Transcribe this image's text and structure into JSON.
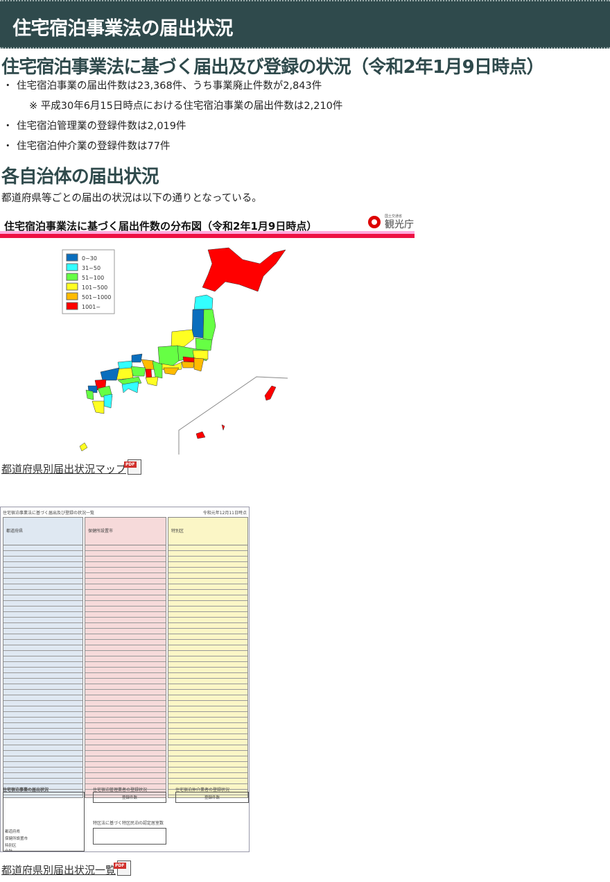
{
  "page_title": "住宅宿泊事業法の届出状況",
  "section1": {
    "heading": "住宅宿泊事業法に基づく届出及び登録の状況（令和2年1月9日時点）",
    "bullets": [
      "住宅宿泊事業の届出件数は23,368件、うち事業廃止件数が2,843件",
      "住宅宿泊管理業の登録件数は2,019件",
      "住宅宿泊仲介業の登録件数は77件"
    ],
    "bullet_mark": "・",
    "note": "※ 平成30年6月15日時点における住宅宿泊事業の届出件数は2,210件"
  },
  "section2": {
    "heading": "各自治体の届出状況",
    "description": "都道府県等ごとの届出の状況は以下の通りとなっている。"
  },
  "map_image": {
    "title": "住宅宿泊事業法に基づく届出件数の分布図（令和2年1月9日時点）",
    "logo_text": "観光庁",
    "logo_subtext": "国土交通省",
    "legend": [
      {
        "label": "0~30",
        "color": "#0a6ebd"
      },
      {
        "label": "31~50",
        "color": "#33ffff"
      },
      {
        "label": "51~100",
        "color": "#66ff44"
      },
      {
        "label": "101~500",
        "color": "#ffff22"
      },
      {
        "label": "501~1000",
        "color": "#ffbb00"
      },
      {
        "label": "1001~",
        "color": "#ff0000"
      }
    ]
  },
  "map_link": "都道府県別届出状況マップ",
  "table_image": {
    "title": "住宅宿泊事業法に基づく届出及び登録の状況一覧",
    "date": "令和元年12月11日時点",
    "groups": [
      "都道府県",
      "保健所設置市",
      "特別区"
    ],
    "bottom_title": "住宅宿泊事業の届出状況",
    "bottom_rows": [
      "都道府県",
      "保健所設置市",
      "特別区",
      "合計"
    ],
    "mgmt_title": "住宅宿泊管理業者の登録状況",
    "broker_title": "住宅宿泊仲介業者の登録状況",
    "reg_label": "登録件数",
    "special_title": "特区法に基づく特区民泊の認定居室数"
  },
  "table_link": "都道府県別届出状況一覧",
  "pdf_badge": "PDF",
  "colors": {
    "title_bar": "#2f4a4c",
    "heading": "#2f4a4c"
  }
}
